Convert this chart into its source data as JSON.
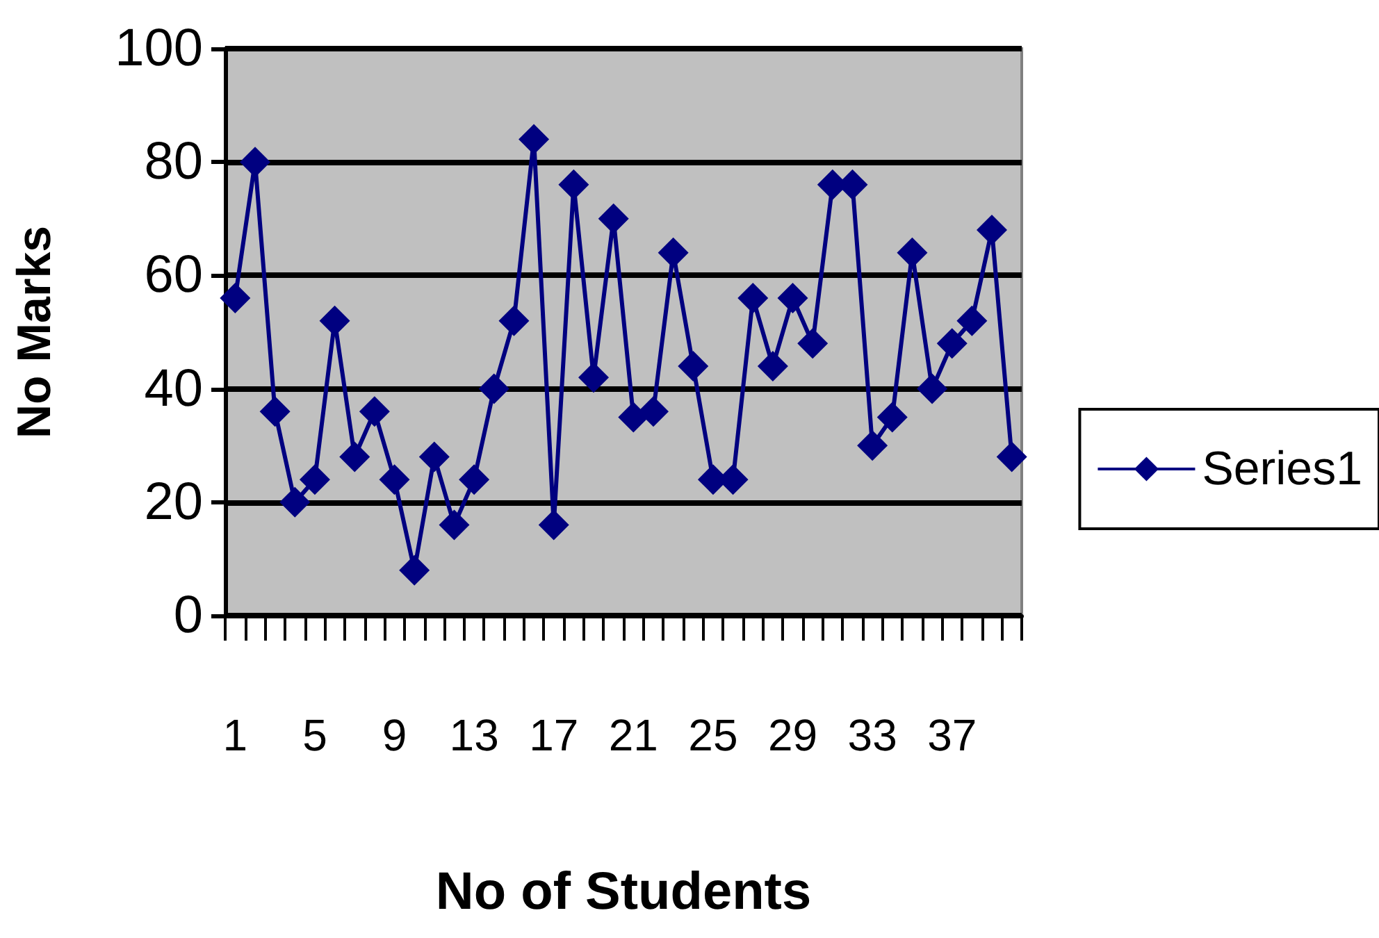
{
  "chart_data": {
    "type": "line",
    "xlabel": "No of Students",
    "ylabel": "No Marks",
    "categories": [
      "1",
      null,
      null,
      null,
      "5",
      null,
      null,
      null,
      "9",
      null,
      null,
      null,
      "13",
      null,
      null,
      null,
      "17",
      null,
      null,
      null,
      "21",
      null,
      null,
      null,
      "25",
      null,
      null,
      null,
      "29",
      null,
      null,
      null,
      "33",
      null,
      null,
      null,
      "37",
      null,
      null,
      null
    ],
    "series": [
      {
        "name": "Series1",
        "color": "#000080",
        "values": [
          56,
          80,
          36,
          20,
          24,
          52,
          28,
          36,
          24,
          8,
          28,
          16,
          24,
          40,
          52,
          84,
          16,
          76,
          42,
          70,
          35,
          36,
          64,
          44,
          24,
          24,
          56,
          44,
          56,
          48,
          76,
          76,
          30,
          35,
          64,
          40,
          48,
          52,
          68,
          28
        ]
      }
    ],
    "ylim": [
      0,
      100
    ],
    "yticks": [
      0,
      20,
      40,
      60,
      80,
      100
    ],
    "grid": "y",
    "legend": "right",
    "marker": "diamond",
    "line_style": "solid"
  }
}
